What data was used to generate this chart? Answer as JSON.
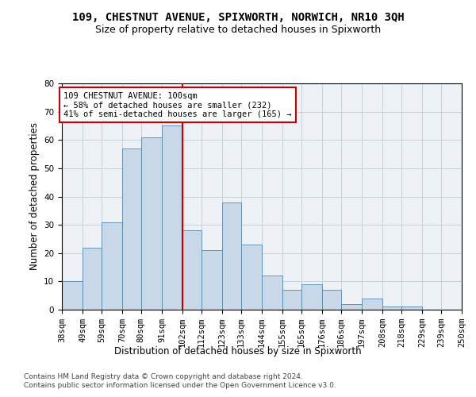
{
  "title": "109, CHESTNUT AVENUE, SPIXWORTH, NORWICH, NR10 3QH",
  "subtitle": "Size of property relative to detached houses in Spixworth",
  "xlabel": "Distribution of detached houses by size in Spixworth",
  "ylabel": "Number of detached properties",
  "categories": [
    "38sqm",
    "49sqm",
    "59sqm",
    "70sqm",
    "80sqm",
    "91sqm",
    "102sqm",
    "112sqm",
    "123sqm",
    "133sqm",
    "144sqm",
    "155sqm",
    "165sqm",
    "176sqm",
    "186sqm",
    "197sqm",
    "208sqm",
    "218sqm",
    "229sqm",
    "239sqm",
    "250sqm"
  ],
  "bar_values": [
    10,
    22,
    31,
    57,
    61,
    65,
    28,
    21,
    38,
    23,
    12,
    7,
    9,
    7,
    2,
    4,
    1,
    1,
    0,
    0
  ],
  "bin_edges": [
    38,
    49,
    59,
    70,
    80,
    91,
    102,
    112,
    123,
    133,
    144,
    155,
    165,
    176,
    186,
    197,
    208,
    218,
    229,
    239,
    250
  ],
  "bar_color": "#c8d8e8",
  "bar_edge_color": "#5588aa",
  "vline_x": 102,
  "vline_color": "#cc0000",
  "annotation_text": "109 CHESTNUT AVENUE: 100sqm\n← 58% of detached houses are smaller (232)\n41% of semi-detached houses are larger (165) →",
  "annotation_box_color": "#ffffff",
  "annotation_box_edge_color": "#cc0000",
  "ylim": [
    0,
    80
  ],
  "yticks": [
    0,
    10,
    20,
    30,
    40,
    50,
    60,
    70,
    80
  ],
  "grid_color": "#c8d0d8",
  "background_color": "#eef2f7",
  "footer_text": "Contains HM Land Registry data © Crown copyright and database right 2024.\nContains public sector information licensed under the Open Government Licence v3.0.",
  "title_fontsize": 10,
  "subtitle_fontsize": 9,
  "axis_label_fontsize": 8.5,
  "tick_fontsize": 7.5,
  "annotation_fontsize": 7.5,
  "footer_fontsize": 6.5
}
